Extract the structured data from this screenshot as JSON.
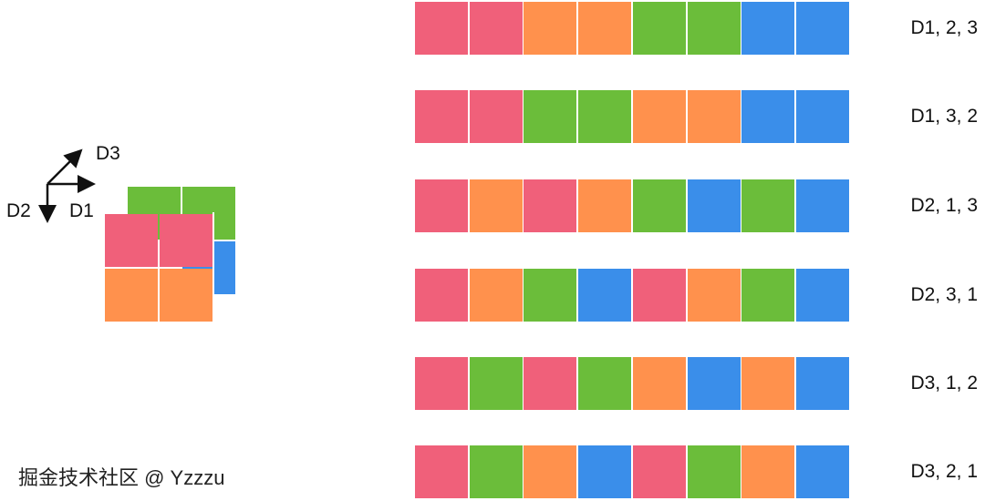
{
  "colors": {
    "1": "#F0607A",
    "2": "#FF914D",
    "3": "#6BBD3A",
    "4": "#3A8EEA"
  },
  "axes": {
    "d1": "D1",
    "d2": "D2",
    "d3": "D3"
  },
  "cube": {
    "back": [
      [
        "3",
        "3"
      ],
      [
        "",
        "4"
      ]
    ],
    "front": [
      [
        "1",
        "1"
      ],
      [
        "2",
        "2"
      ]
    ]
  },
  "rows": [
    {
      "label": "D1, 2, 3",
      "cells": [
        "1",
        "1",
        "2",
        "2",
        "3",
        "3",
        "4",
        "4"
      ]
    },
    {
      "label": "D1, 3, 2",
      "cells": [
        "1",
        "1",
        "3",
        "3",
        "2",
        "2",
        "4",
        "4"
      ]
    },
    {
      "label": "D2, 1, 3",
      "cells": [
        "1",
        "2",
        "1",
        "2",
        "3",
        "4",
        "3",
        "4"
      ]
    },
    {
      "label": "D2, 3, 1",
      "cells": [
        "1",
        "2",
        "3",
        "4",
        "1",
        "2",
        "3",
        "4"
      ]
    },
    {
      "label": "D3, 1, 2",
      "cells": [
        "1",
        "3",
        "1",
        "3",
        "2",
        "4",
        "2",
        "4"
      ]
    },
    {
      "label": "D3, 2, 1",
      "cells": [
        "1",
        "3",
        "2",
        "4",
        "1",
        "3",
        "2",
        "4"
      ]
    }
  ],
  "watermark": "掘金技术社区 @ Yzzzu"
}
